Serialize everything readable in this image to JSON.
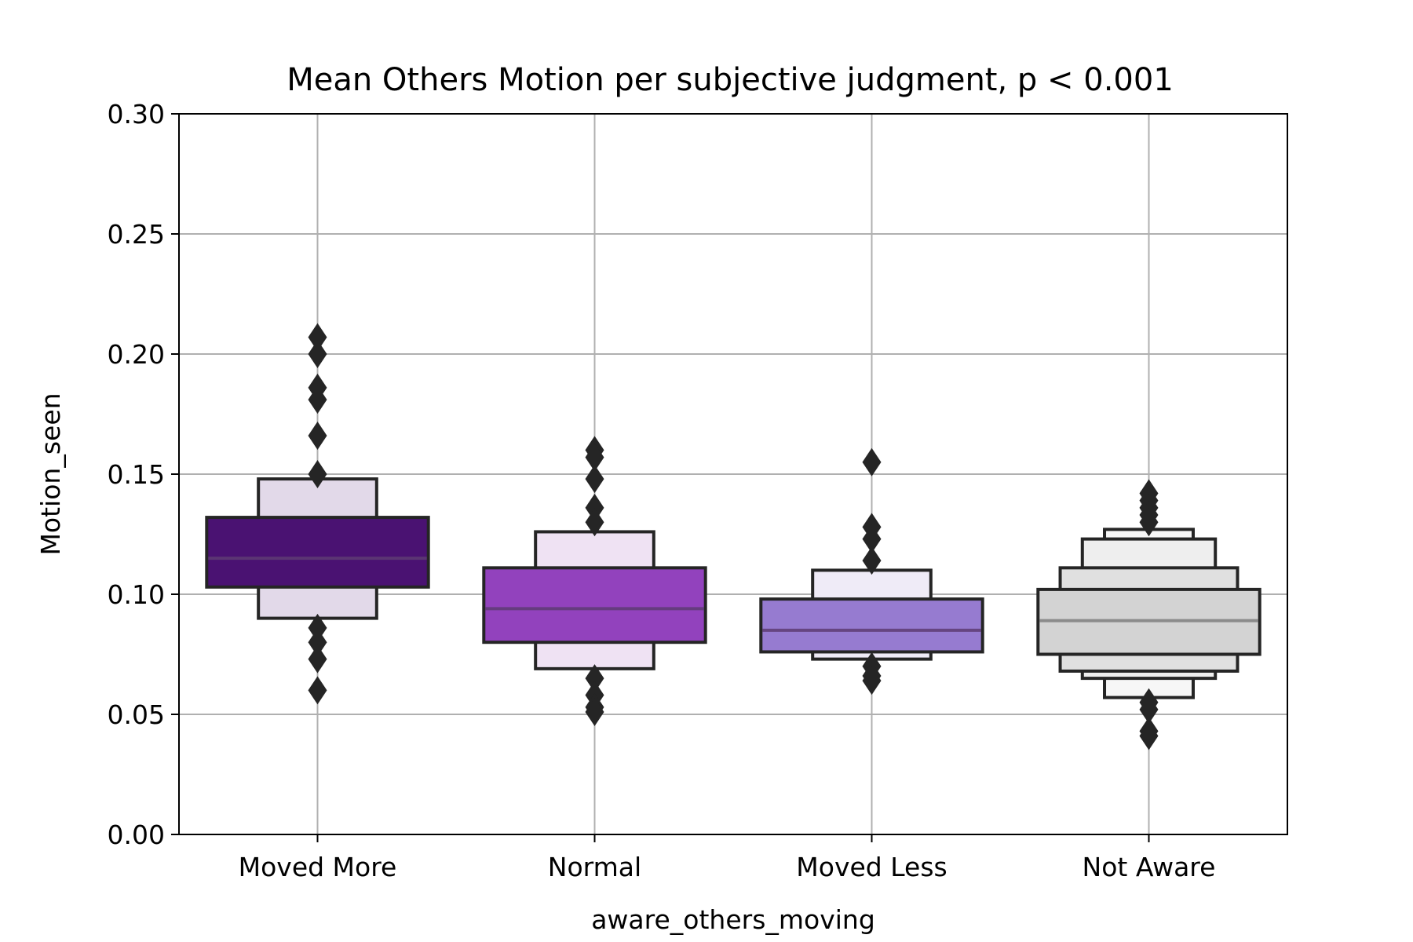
{
  "chart_data": {
    "type": "boxen",
    "title": "Mean Others Motion per subjective judgment, p < 0.001",
    "xlabel": "aware_others_moving",
    "ylabel": "Motion_seen",
    "ylim": [
      0,
      0.3
    ],
    "yticks": [
      "0.00",
      "0.05",
      "0.10",
      "0.15",
      "0.20",
      "0.25",
      "0.30"
    ],
    "grid": true,
    "categories": [
      "Moved More",
      "Normal",
      "Moved Less",
      "Not Aware"
    ],
    "boxes": [
      {
        "category": "Moved More",
        "color": "#4a1272",
        "median": 0.115,
        "levels": [
          {
            "low": 0.103,
            "high": 0.132,
            "fill": "#4a1272"
          },
          {
            "low": 0.09,
            "high": 0.148,
            "fill": "#e2d9e9"
          }
        ],
        "outliers": [
          0.207,
          0.2,
          0.186,
          0.181,
          0.166,
          0.15,
          0.086,
          0.08,
          0.073,
          0.06
        ]
      },
      {
        "category": "Normal",
        "color": "#9242bd",
        "median": 0.094,
        "levels": [
          {
            "low": 0.08,
            "high": 0.111,
            "fill": "#9242bd"
          },
          {
            "low": 0.069,
            "high": 0.126,
            "fill": "#efe2f3"
          }
        ],
        "outliers": [
          0.16,
          0.157,
          0.148,
          0.136,
          0.13,
          0.065,
          0.058,
          0.053,
          0.051
        ]
      },
      {
        "category": "Moved Less",
        "color": "#967bd0",
        "median": 0.085,
        "levels": [
          {
            "low": 0.076,
            "high": 0.098,
            "fill": "#967bd0"
          },
          {
            "low": 0.073,
            "high": 0.11,
            "fill": "#efebf7"
          }
        ],
        "outliers": [
          0.155,
          0.128,
          0.123,
          0.114,
          0.07,
          0.066,
          0.064
        ]
      },
      {
        "category": "Not Aware",
        "color": "#d3d3d3",
        "median": 0.089,
        "levels": [
          {
            "low": 0.075,
            "high": 0.102,
            "fill": "#d3d3d3"
          },
          {
            "low": 0.068,
            "high": 0.111,
            "fill": "#e0e0e0"
          },
          {
            "low": 0.065,
            "high": 0.123,
            "fill": "#eeeeee"
          },
          {
            "low": 0.057,
            "high": 0.127,
            "fill": "#f7f7f7"
          }
        ],
        "outliers": [
          0.142,
          0.139,
          0.136,
          0.133,
          0.13,
          0.055,
          0.052,
          0.043,
          0.041
        ]
      }
    ]
  }
}
